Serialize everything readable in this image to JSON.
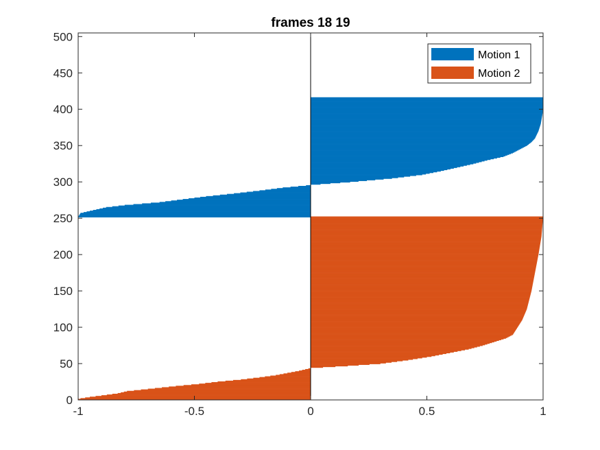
{
  "chart_data": {
    "type": "bar",
    "orientation": "horizontal",
    "layout": "silhouette",
    "title": "frames 18 19",
    "xlabel": "",
    "ylabel": "",
    "xlim": [
      -1,
      1
    ],
    "ylim": [
      0,
      505
    ],
    "xticks": [
      -1,
      -0.5,
      0,
      0.5,
      1
    ],
    "xtick_labels": [
      "-1",
      "-0.5",
      "0",
      "0.5",
      "1"
    ],
    "yticks": [
      0,
      50,
      100,
      150,
      200,
      250,
      300,
      350,
      400,
      450,
      500
    ],
    "ytick_labels": [
      "0",
      "50",
      "100",
      "150",
      "200",
      "250",
      "300",
      "350",
      "400",
      "450",
      "500"
    ],
    "grid": false,
    "legend_position": "top-right",
    "series": [
      {
        "name": "Motion 1",
        "color": "#0072BD",
        "index_range": [
          252,
          416
        ],
        "profile": [
          {
            "index": 252,
            "value": -1.0
          },
          {
            "index": 257,
            "value": -0.99
          },
          {
            "index": 260,
            "value": -0.95
          },
          {
            "index": 265,
            "value": -0.88
          },
          {
            "index": 268,
            "value": -0.8
          },
          {
            "index": 272,
            "value": -0.65
          },
          {
            "index": 276,
            "value": -0.55
          },
          {
            "index": 280,
            "value": -0.45
          },
          {
            "index": 284,
            "value": -0.33
          },
          {
            "index": 288,
            "value": -0.22
          },
          {
            "index": 292,
            "value": -0.12
          },
          {
            "index": 295,
            "value": -0.02
          },
          {
            "index": 296,
            "value": 0.0
          },
          {
            "index": 300,
            "value": 0.17
          },
          {
            "index": 305,
            "value": 0.35
          },
          {
            "index": 310,
            "value": 0.48
          },
          {
            "index": 315,
            "value": 0.56
          },
          {
            "index": 320,
            "value": 0.63
          },
          {
            "index": 325,
            "value": 0.7
          },
          {
            "index": 330,
            "value": 0.76
          },
          {
            "index": 335,
            "value": 0.83
          },
          {
            "index": 340,
            "value": 0.87
          },
          {
            "index": 345,
            "value": 0.9
          },
          {
            "index": 350,
            "value": 0.93
          },
          {
            "index": 355,
            "value": 0.95
          },
          {
            "index": 360,
            "value": 0.965
          },
          {
            "index": 370,
            "value": 0.98
          },
          {
            "index": 380,
            "value": 0.99
          },
          {
            "index": 395,
            "value": 0.998
          },
          {
            "index": 416,
            "value": 1.0
          }
        ]
      },
      {
        "name": "Motion 2",
        "color": "#D95319",
        "index_range": [
          1,
          252
        ],
        "profile": [
          {
            "index": 1,
            "value": -1.0
          },
          {
            "index": 2,
            "value": -0.99
          },
          {
            "index": 4,
            "value": -0.95
          },
          {
            "index": 6,
            "value": -0.9
          },
          {
            "index": 9,
            "value": -0.83
          },
          {
            "index": 12,
            "value": -0.79
          },
          {
            "index": 15,
            "value": -0.7
          },
          {
            "index": 19,
            "value": -0.58
          },
          {
            "index": 22,
            "value": -0.48
          },
          {
            "index": 25,
            "value": -0.4
          },
          {
            "index": 28,
            "value": -0.3
          },
          {
            "index": 31,
            "value": -0.22
          },
          {
            "index": 34,
            "value": -0.15
          },
          {
            "index": 37,
            "value": -0.1
          },
          {
            "index": 40,
            "value": -0.05
          },
          {
            "index": 43,
            "value": -0.01
          },
          {
            "index": 44,
            "value": 0.0
          },
          {
            "index": 47,
            "value": 0.16
          },
          {
            "index": 50,
            "value": 0.3
          },
          {
            "index": 55,
            "value": 0.42
          },
          {
            "index": 60,
            "value": 0.52
          },
          {
            "index": 65,
            "value": 0.6
          },
          {
            "index": 70,
            "value": 0.68
          },
          {
            "index": 75,
            "value": 0.74
          },
          {
            "index": 80,
            "value": 0.79
          },
          {
            "index": 85,
            "value": 0.84
          },
          {
            "index": 90,
            "value": 0.87
          },
          {
            "index": 100,
            "value": 0.89
          },
          {
            "index": 110,
            "value": 0.91
          },
          {
            "index": 125,
            "value": 0.93
          },
          {
            "index": 150,
            "value": 0.95
          },
          {
            "index": 175,
            "value": 0.965
          },
          {
            "index": 200,
            "value": 0.98
          },
          {
            "index": 225,
            "value": 0.993
          },
          {
            "index": 252,
            "value": 1.0
          }
        ]
      }
    ]
  }
}
